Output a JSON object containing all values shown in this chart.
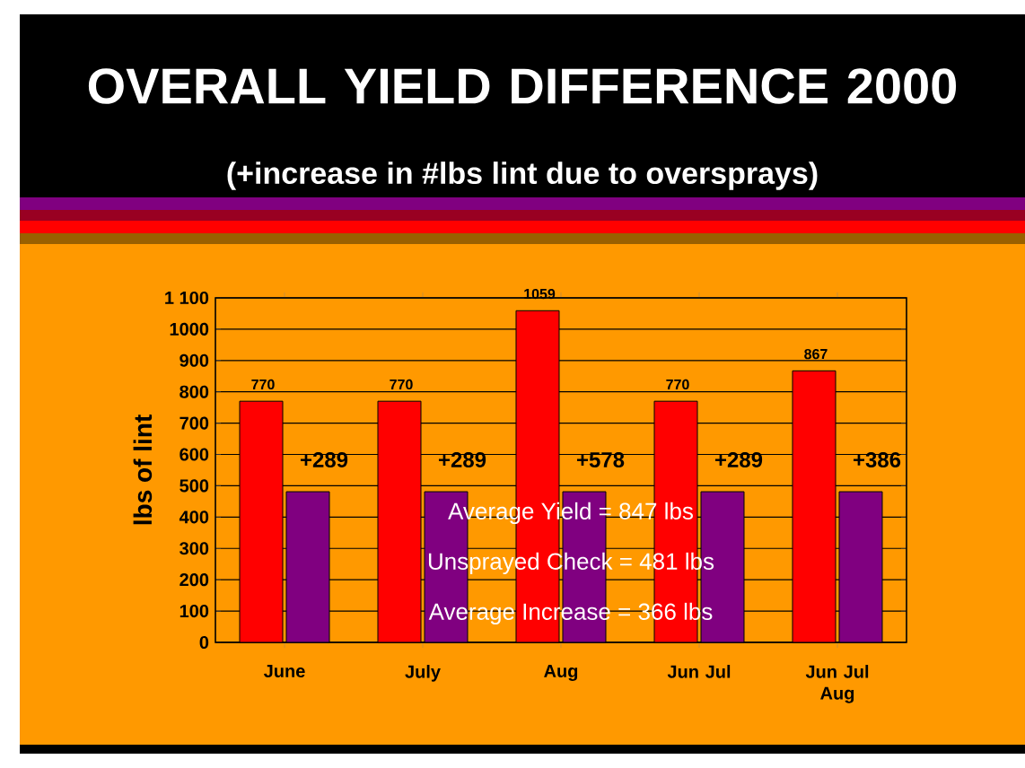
{
  "chart_data": {
    "type": "bar",
    "title": "OVERALL YIELD DIFFERENCE 2000",
    "subtitle": "(+increase in #lbs lint due to oversprays)",
    "ylabel": "lbs of lint",
    "categories": [
      "June",
      "July",
      "Aug",
      "Jun Jul",
      "Jun Jul Aug"
    ],
    "series": [
      {
        "color": "#ff0000",
        "values": [
          770,
          770,
          1059,
          770,
          867
        ],
        "value_labels": [
          "770",
          "770",
          "1059",
          "770",
          "867"
        ]
      },
      {
        "color": "#800080",
        "values": [
          481,
          481,
          481,
          481,
          481
        ]
      }
    ],
    "ylim": [
      0,
      1100
    ],
    "yticks": [
      0,
      100,
      200,
      300,
      400,
      500,
      600,
      700,
      800,
      900,
      1000,
      {
        "value": 1100,
        "label": "1 100"
      }
    ],
    "grid": "y",
    "annotations": [
      "Average Yield = 847 lbs",
      "Unsprayed Check = 481 lbs",
      "Average Increase = 366 lbs",
      {
        "text": "+289",
        "x": "June",
        "y": 481
      },
      {
        "text": "+289",
        "x": "July",
        "y": 481
      },
      {
        "text": "+578",
        "x": "Aug",
        "y": 481
      },
      {
        "text": "+289",
        "x": "Jun Jul",
        "y": 481
      },
      {
        "text": "+386",
        "x": "Jun Jul Aug",
        "y": 481
      }
    ]
  }
}
